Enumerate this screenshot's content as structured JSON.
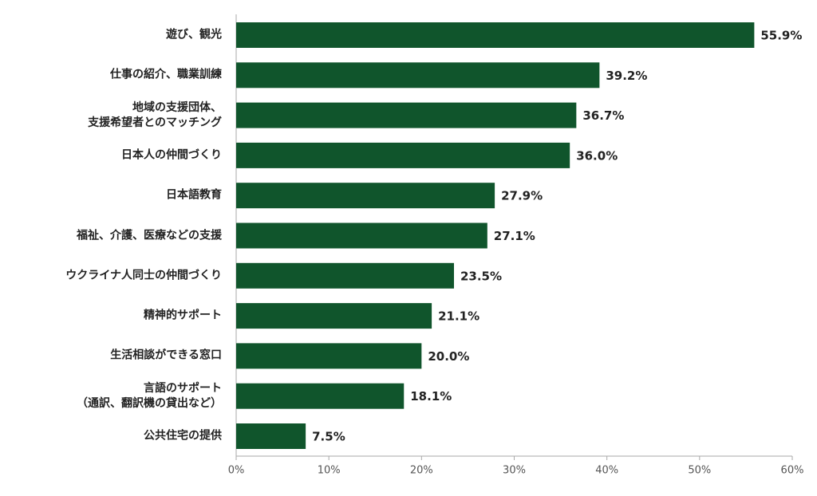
{
  "chart_data": {
    "type": "bar",
    "orientation": "horizontal",
    "categories": [
      "遊び、観光",
      "仕事の紹介、職業訓練",
      "地域の支援団体、\n支援希望者とのマッチング",
      "日本人の仲間づくり",
      "日本語教育",
      "福祉、介護、医療などの支援",
      "ウクライナ人同士の仲間づくり",
      "精神的サポート",
      "生活相談ができる窓口",
      "言語のサポート\n（通訳、翻訳機の貸出など）",
      "公共住宅の提供"
    ],
    "values": [
      55.9,
      39.2,
      36.7,
      36.0,
      27.9,
      27.1,
      23.5,
      21.1,
      20.0,
      18.1,
      7.5
    ],
    "value_labels": [
      "55.9%",
      "39.2%",
      "36.7%",
      "36.0%",
      "27.9%",
      "27.1%",
      "23.5%",
      "21.1%",
      "20.0%",
      "18.1%",
      "7.5%"
    ],
    "color": "#10552c",
    "xlim": [
      0,
      60
    ],
    "xticks": [
      {
        "value": 0,
        "label": "0%"
      },
      {
        "value": 10,
        "label": "10%"
      },
      {
        "value": 20,
        "label": "20%"
      },
      {
        "value": 30,
        "label": "30%"
      },
      {
        "value": 40,
        "label": "40%"
      },
      {
        "value": 50,
        "label": "50%"
      },
      {
        "value": 60,
        "label": "60%"
      }
    ]
  }
}
